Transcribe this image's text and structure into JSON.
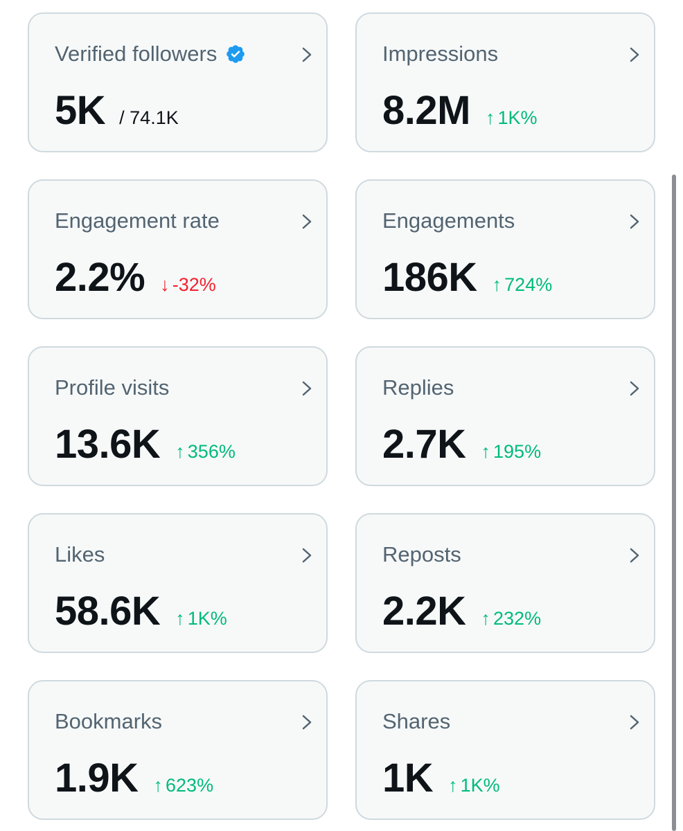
{
  "colors": {
    "card_bg": "#f7f9f9",
    "card_border": "#cfd9de",
    "label": "#536471",
    "value": "#0f1419",
    "up": "#00ba7c",
    "down": "#f4212e",
    "verified": "#1d9bf0"
  },
  "cards": [
    {
      "label": "Verified followers",
      "value": "5K",
      "sub": "/ 74.1K",
      "verified_icon": "verified-badge-icon"
    },
    {
      "label": "Impressions",
      "value": "8.2M",
      "delta": "1K%",
      "direction": "up"
    },
    {
      "label": "Engagement rate",
      "value": "2.2%",
      "delta": "-32%",
      "direction": "down"
    },
    {
      "label": "Engagements",
      "value": "186K",
      "delta": "724%",
      "direction": "up"
    },
    {
      "label": "Profile visits",
      "value": "13.6K",
      "delta": "356%",
      "direction": "up"
    },
    {
      "label": "Replies",
      "value": "2.7K",
      "delta": "195%",
      "direction": "up"
    },
    {
      "label": "Likes",
      "value": "58.6K",
      "delta": "1K%",
      "direction": "up"
    },
    {
      "label": "Reposts",
      "value": "2.2K",
      "delta": "232%",
      "direction": "up"
    },
    {
      "label": "Bookmarks",
      "value": "1.9K",
      "delta": "623%",
      "direction": "up"
    },
    {
      "label": "Shares",
      "value": "1K",
      "delta": "1K%",
      "direction": "up"
    }
  ],
  "arrows": {
    "up": "↑",
    "down": "↓"
  }
}
